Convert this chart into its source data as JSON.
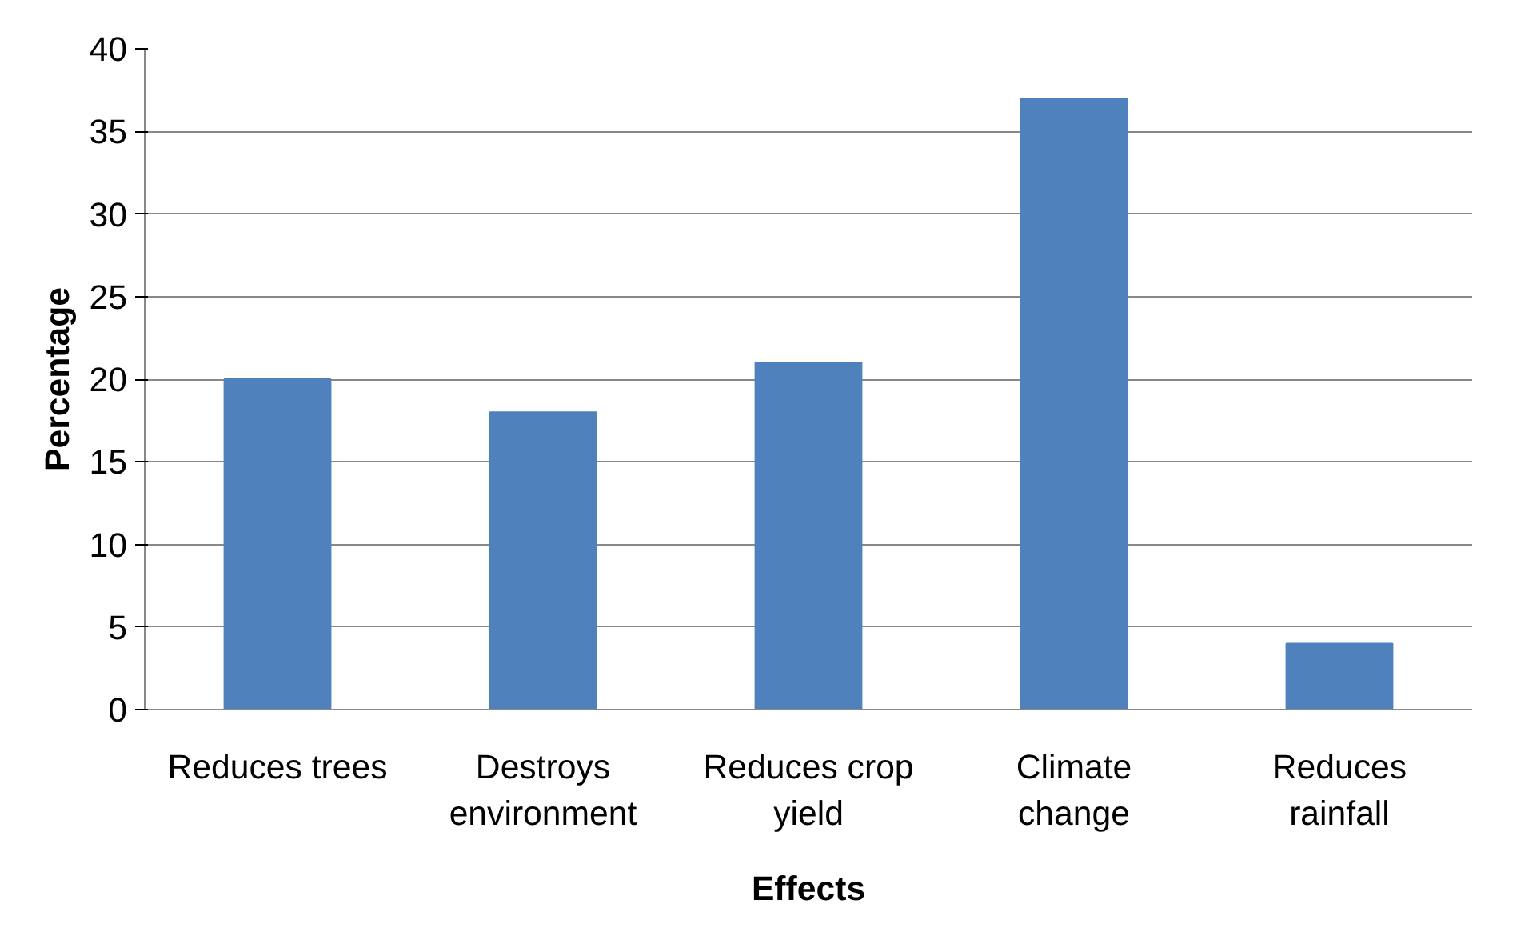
{
  "chart_data": {
    "type": "bar",
    "xlabel": "Effects",
    "ylabel": "Percentage",
    "categories": [
      "Reduces trees",
      "Destroys environment",
      "Reduces crop yield",
      "Climate change",
      "Reduces rainfall"
    ],
    "values": [
      20,
      18,
      21,
      37,
      4
    ],
    "color": "#4f81bd",
    "ylim": [
      0,
      40
    ],
    "yticks": [
      0,
      5,
      10,
      15,
      20,
      25,
      30,
      35,
      40
    ],
    "grid": "y"
  }
}
